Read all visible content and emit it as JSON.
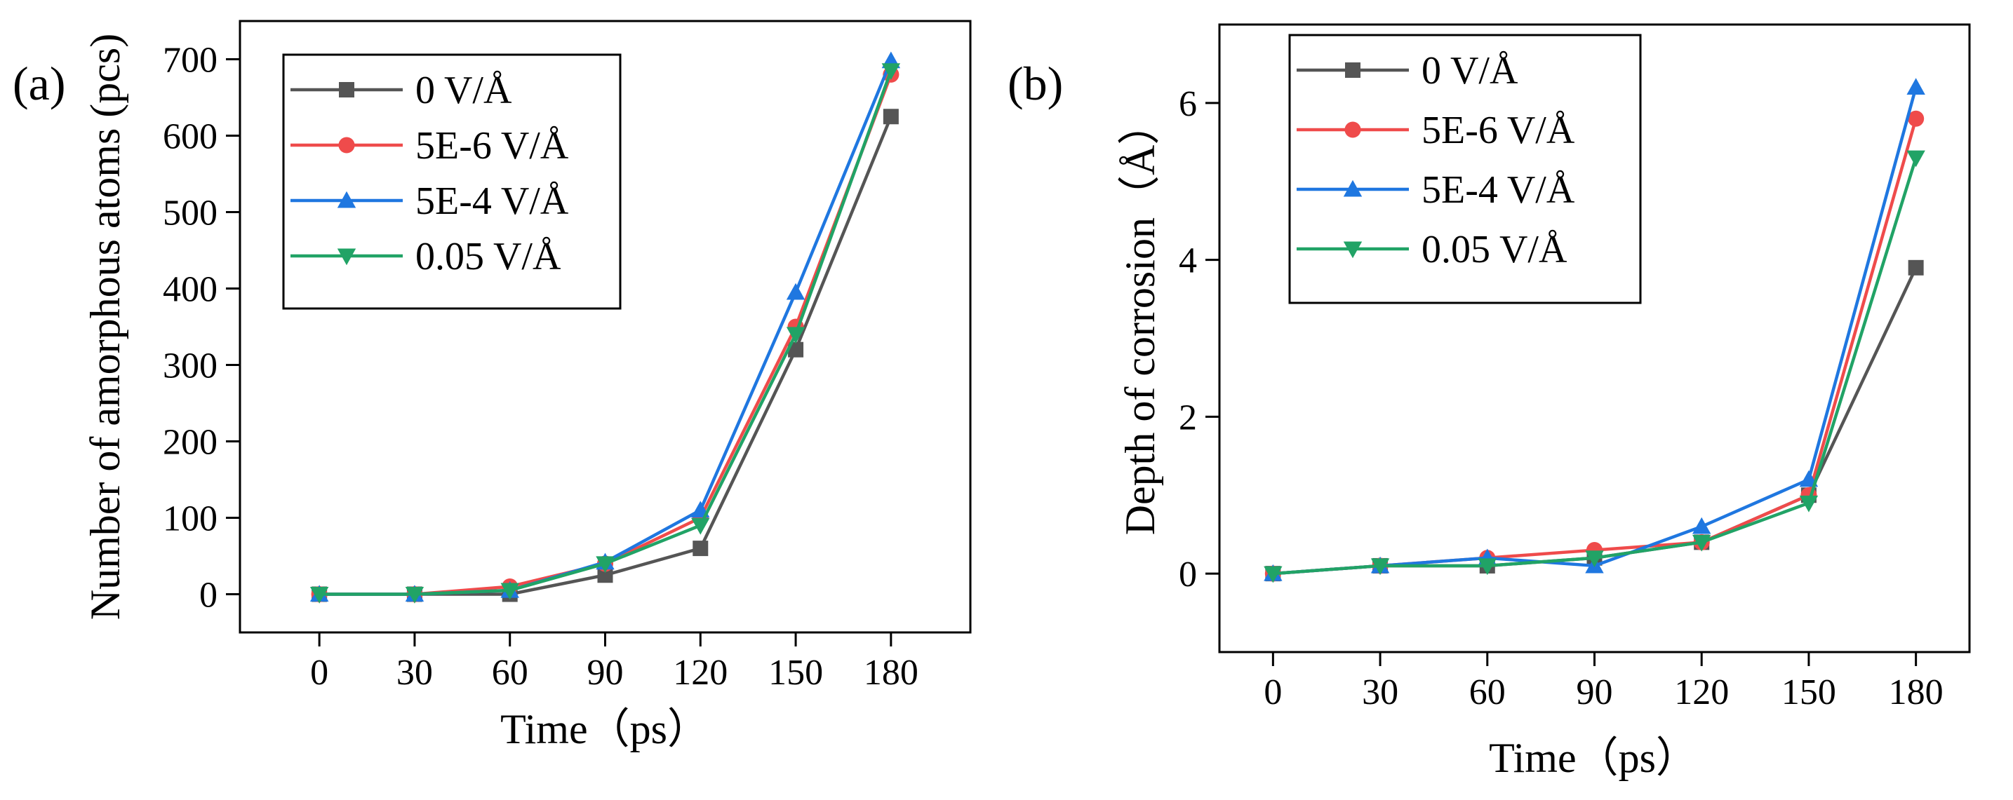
{
  "figure": {
    "panels": [
      "(a)",
      "(b)"
    ]
  },
  "chart_data": [
    {
      "type": "line",
      "panel_label": "(a)",
      "title": "",
      "xlabel": "Time（ps）",
      "ylabel": "Number of amorphous atoms (pcs)",
      "x": [
        0,
        30,
        60,
        90,
        120,
        150,
        180
      ],
      "xlim": [
        -25,
        205
      ],
      "ylim": [
        -50,
        750
      ],
      "xticks": [
        0,
        30,
        60,
        90,
        120,
        150,
        180
      ],
      "yticks": [
        0,
        100,
        200,
        300,
        400,
        500,
        600,
        700
      ],
      "grid": false,
      "legend_position": "top-left",
      "series": [
        {
          "name": "0 V/Å",
          "color": "#555555",
          "marker": "square",
          "values": [
            0,
            0,
            0,
            25,
            60,
            320,
            625
          ]
        },
        {
          "name": "5E-6 V/Å",
          "color": "#ef4b4b",
          "marker": "circle",
          "values": [
            0,
            0,
            10,
            40,
            100,
            350,
            680
          ]
        },
        {
          "name": "5E-4 V/Å",
          "color": "#1f77e0",
          "marker": "triangle-up",
          "values": [
            0,
            0,
            5,
            42,
            110,
            395,
            698
          ]
        },
        {
          "name": "0.05 V/Å",
          "color": "#21a366",
          "marker": "triangle-down",
          "values": [
            0,
            0,
            5,
            40,
            90,
            340,
            685
          ]
        }
      ]
    },
    {
      "type": "line",
      "panel_label": "(b)",
      "title": "",
      "xlabel": "Time（ps）",
      "ylabel": "Depth of corrosion（Å）",
      "x": [
        0,
        30,
        60,
        90,
        120,
        150,
        180
      ],
      "xlim": [
        -15,
        195
      ],
      "ylim": [
        -1,
        7
      ],
      "xticks": [
        0,
        30,
        60,
        90,
        120,
        150,
        180
      ],
      "yticks": [
        0,
        2,
        4,
        6
      ],
      "grid": false,
      "legend_position": "top-left",
      "series": [
        {
          "name": "0 V/Å",
          "color": "#555555",
          "marker": "square",
          "values": [
            0,
            0.1,
            0.1,
            0.2,
            0.4,
            1.0,
            3.9
          ]
        },
        {
          "name": "5E-6 V/Å",
          "color": "#ef4b4b",
          "marker": "circle",
          "values": [
            0,
            0.1,
            0.2,
            0.3,
            0.4,
            1.0,
            5.8
          ]
        },
        {
          "name": "5E-4 V/Å",
          "color": "#1f77e0",
          "marker": "triangle-up",
          "values": [
            0,
            0.1,
            0.2,
            0.1,
            0.6,
            1.2,
            6.2
          ]
        },
        {
          "name": "0.05 V/Å",
          "color": "#21a366",
          "marker": "triangle-down",
          "values": [
            0,
            0.1,
            0.1,
            0.2,
            0.4,
            0.9,
            5.3
          ]
        }
      ]
    }
  ]
}
